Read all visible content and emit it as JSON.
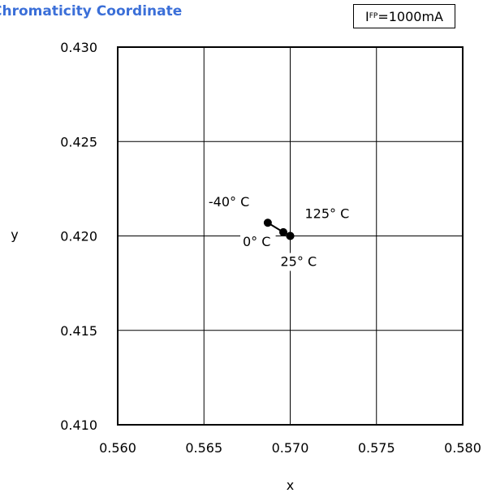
{
  "chart_data": {
    "type": "line",
    "title": "Chromaticity Coordinate",
    "condition": {
      "label": "I",
      "subscript": "FP",
      "value": "=1000mA"
    },
    "xlabel": "x",
    "ylabel": "y",
    "xlim": [
      0.56,
      0.58
    ],
    "ylim": [
      0.41,
      0.43
    ],
    "xticks": [
      "0.560",
      "0.565",
      "0.570",
      "0.575",
      "0.580"
    ],
    "yticks": [
      "0.410",
      "0.415",
      "0.420",
      "0.425",
      "0.430"
    ],
    "grid": true,
    "series": [
      {
        "points": [
          {
            "x": 0.5687,
            "y": 0.4207,
            "label": "-40° C"
          },
          {
            "x": 0.5696,
            "y": 0.4202,
            "label": "0° C"
          },
          {
            "x": 0.57,
            "y": 0.42,
            "label": "25° C"
          },
          {
            "x": 0.57,
            "y": 0.42,
            "label": "125° C"
          }
        ]
      }
    ],
    "colors": {
      "title": "#3b6fd8",
      "line": "#000000",
      "grid": "#000000"
    }
  }
}
